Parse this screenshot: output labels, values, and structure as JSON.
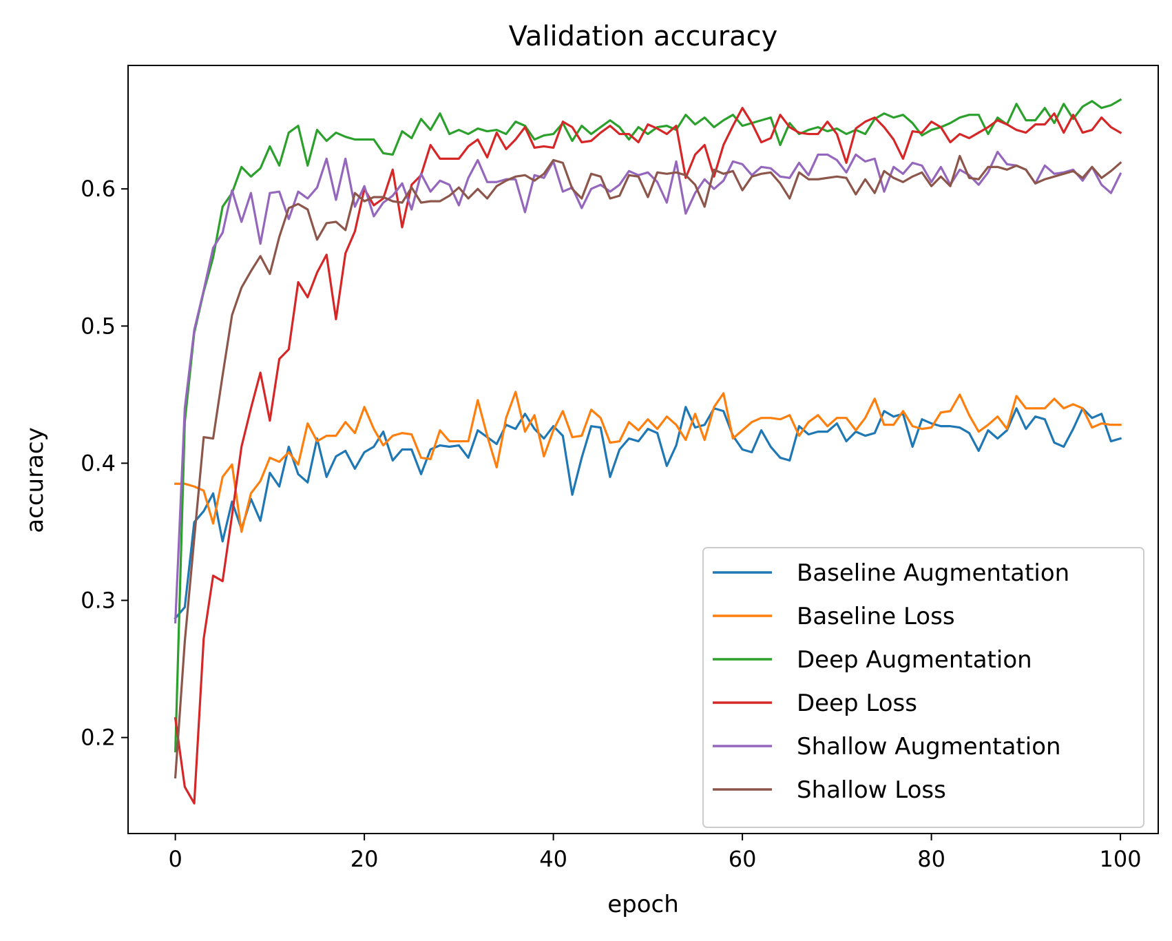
{
  "chart_data": {
    "type": "line",
    "title": "Validation accuracy",
    "xlabel": "epoch",
    "ylabel": "accuracy",
    "xlim": [
      -5,
      104
    ],
    "ylim": [
      0.13,
      0.69
    ],
    "xticks": [
      0,
      20,
      40,
      60,
      80,
      100
    ],
    "yticks": [
      0.2,
      0.3,
      0.4,
      0.5,
      0.6
    ],
    "xtick_labels": [
      "0",
      "20",
      "40",
      "60",
      "80",
      "100"
    ],
    "ytick_labels": [
      "0.2",
      "0.3",
      "0.4",
      "0.5",
      "0.6"
    ],
    "grid": false,
    "legend_position": "lower right",
    "series": [
      {
        "name": "Baseline Augmentation",
        "color": "#1f77b4",
        "values": [
          0.287,
          0.295,
          0.357,
          0.365,
          0.378,
          0.343,
          0.372,
          0.352,
          0.374,
          0.358,
          0.393,
          0.383,
          0.412,
          0.392,
          0.386,
          0.418,
          0.39,
          0.405,
          0.409,
          0.396,
          0.408,
          0.412,
          0.423,
          0.402,
          0.41,
          0.41,
          0.392,
          0.41,
          0.413,
          0.412,
          0.413,
          0.404,
          0.424,
          0.419,
          0.414,
          0.428,
          0.425,
          0.436,
          0.425,
          0.418,
          0.427,
          0.42,
          0.377,
          0.404,
          0.427,
          0.426,
          0.39,
          0.41,
          0.418,
          0.416,
          0.425,
          0.422,
          0.398,
          0.413,
          0.441,
          0.426,
          0.428,
          0.44,
          0.438,
          0.42,
          0.41,
          0.408,
          0.424,
          0.412,
          0.404,
          0.402,
          0.427,
          0.421,
          0.423,
          0.423,
          0.429,
          0.416,
          0.423,
          0.42,
          0.422,
          0.438,
          0.434,
          0.436,
          0.412,
          0.432,
          0.429,
          0.427,
          0.427,
          0.426,
          0.422,
          0.409,
          0.424,
          0.418,
          0.424,
          0.44,
          0.425,
          0.434,
          0.432,
          0.415,
          0.412,
          0.425,
          0.44,
          0.433,
          0.436,
          0.416,
          0.418
        ]
      },
      {
        "name": "Baseline Loss",
        "color": "#ff7f0e",
        "values": [
          0.385,
          0.385,
          0.383,
          0.38,
          0.356,
          0.39,
          0.399,
          0.35,
          0.378,
          0.387,
          0.404,
          0.401,
          0.408,
          0.399,
          0.429,
          0.416,
          0.42,
          0.42,
          0.43,
          0.422,
          0.441,
          0.425,
          0.413,
          0.42,
          0.422,
          0.421,
          0.404,
          0.403,
          0.424,
          0.416,
          0.416,
          0.416,
          0.446,
          0.42,
          0.397,
          0.433,
          0.452,
          0.423,
          0.435,
          0.405,
          0.424,
          0.438,
          0.419,
          0.42,
          0.439,
          0.433,
          0.415,
          0.416,
          0.43,
          0.424,
          0.432,
          0.425,
          0.434,
          0.428,
          0.417,
          0.436,
          0.417,
          0.441,
          0.451,
          0.418,
          0.424,
          0.43,
          0.433,
          0.433,
          0.432,
          0.435,
          0.42,
          0.43,
          0.435,
          0.427,
          0.433,
          0.433,
          0.424,
          0.433,
          0.447,
          0.428,
          0.428,
          0.438,
          0.427,
          0.425,
          0.426,
          0.437,
          0.438,
          0.45,
          0.435,
          0.423,
          0.428,
          0.434,
          0.425,
          0.449,
          0.44,
          0.44,
          0.44,
          0.447,
          0.44,
          0.443,
          0.44,
          0.426,
          0.429,
          0.428,
          0.428
        ]
      },
      {
        "name": "Deep Augmentation",
        "color": "#2ca02c",
        "values": [
          0.19,
          0.43,
          0.495,
          0.525,
          0.55,
          0.587,
          0.597,
          0.616,
          0.609,
          0.615,
          0.631,
          0.617,
          0.641,
          0.646,
          0.617,
          0.643,
          0.635,
          0.641,
          0.638,
          0.636,
          0.636,
          0.636,
          0.626,
          0.625,
          0.642,
          0.637,
          0.651,
          0.643,
          0.655,
          0.64,
          0.643,
          0.64,
          0.644,
          0.642,
          0.643,
          0.64,
          0.649,
          0.646,
          0.636,
          0.639,
          0.64,
          0.648,
          0.635,
          0.646,
          0.64,
          0.645,
          0.65,
          0.645,
          0.636,
          0.645,
          0.64,
          0.645,
          0.646,
          0.643,
          0.654,
          0.647,
          0.652,
          0.645,
          0.65,
          0.654,
          0.646,
          0.648,
          0.65,
          0.652,
          0.632,
          0.648,
          0.64,
          0.643,
          0.645,
          0.642,
          0.644,
          0.64,
          0.643,
          0.64,
          0.651,
          0.655,
          0.652,
          0.654,
          0.648,
          0.639,
          0.643,
          0.645,
          0.648,
          0.652,
          0.654,
          0.654,
          0.64,
          0.652,
          0.647,
          0.662,
          0.65,
          0.65,
          0.659,
          0.648,
          0.662,
          0.651,
          0.66,
          0.664,
          0.659,
          0.661,
          0.665
        ]
      },
      {
        "name": "Deep Loss",
        "color": "#d62728",
        "values": [
          0.214,
          0.164,
          0.152,
          0.272,
          0.318,
          0.314,
          0.362,
          0.412,
          0.44,
          0.466,
          0.431,
          0.476,
          0.483,
          0.532,
          0.521,
          0.539,
          0.552,
          0.505,
          0.553,
          0.569,
          0.6,
          0.588,
          0.593,
          0.614,
          0.572,
          0.603,
          0.61,
          0.632,
          0.622,
          0.622,
          0.622,
          0.631,
          0.636,
          0.623,
          0.641,
          0.629,
          0.636,
          0.645,
          0.63,
          0.631,
          0.63,
          0.649,
          0.645,
          0.634,
          0.635,
          0.641,
          0.646,
          0.64,
          0.64,
          0.634,
          0.647,
          0.644,
          0.64,
          0.646,
          0.608,
          0.625,
          0.632,
          0.609,
          0.632,
          0.646,
          0.659,
          0.648,
          0.634,
          0.637,
          0.654,
          0.645,
          0.641,
          0.64,
          0.64,
          0.649,
          0.64,
          0.619,
          0.644,
          0.649,
          0.652,
          0.645,
          0.636,
          0.622,
          0.642,
          0.641,
          0.649,
          0.645,
          0.634,
          0.64,
          0.637,
          0.641,
          0.645,
          0.65,
          0.647,
          0.643,
          0.641,
          0.647,
          0.647,
          0.655,
          0.641,
          0.654,
          0.641,
          0.643,
          0.652,
          0.645,
          0.641
        ]
      },
      {
        "name": "Shallow Augmentation",
        "color": "#9467bd",
        "values": [
          0.284,
          0.44,
          0.497,
          0.526,
          0.557,
          0.568,
          0.599,
          0.576,
          0.597,
          0.56,
          0.597,
          0.598,
          0.578,
          0.598,
          0.593,
          0.601,
          0.622,
          0.592,
          0.622,
          0.587,
          0.602,
          0.58,
          0.59,
          0.595,
          0.604,
          0.585,
          0.611,
          0.598,
          0.606,
          0.603,
          0.588,
          0.608,
          0.621,
          0.605,
          0.605,
          0.607,
          0.607,
          0.583,
          0.61,
          0.608,
          0.62,
          0.598,
          0.601,
          0.586,
          0.6,
          0.603,
          0.598,
          0.603,
          0.613,
          0.61,
          0.612,
          0.605,
          0.59,
          0.62,
          0.582,
          0.597,
          0.607,
          0.6,
          0.606,
          0.62,
          0.618,
          0.61,
          0.616,
          0.615,
          0.609,
          0.608,
          0.619,
          0.61,
          0.625,
          0.625,
          0.621,
          0.612,
          0.625,
          0.62,
          0.622,
          0.598,
          0.616,
          0.611,
          0.619,
          0.617,
          0.605,
          0.616,
          0.603,
          0.614,
          0.61,
          0.603,
          0.612,
          0.627,
          0.618,
          0.617,
          0.614,
          0.604,
          0.617,
          0.611,
          0.612,
          0.614,
          0.606,
          0.616,
          0.603,
          0.597,
          0.611
        ]
      },
      {
        "name": "Shallow Loss",
        "color": "#8c564b",
        "values": [
          0.171,
          0.27,
          0.345,
          0.419,
          0.418,
          0.464,
          0.508,
          0.528,
          0.54,
          0.551,
          0.538,
          0.565,
          0.586,
          0.589,
          0.585,
          0.563,
          0.575,
          0.576,
          0.57,
          0.597,
          0.591,
          0.594,
          0.594,
          0.591,
          0.59,
          0.601,
          0.59,
          0.591,
          0.591,
          0.595,
          0.601,
          0.593,
          0.6,
          0.593,
          0.602,
          0.606,
          0.609,
          0.61,
          0.606,
          0.611,
          0.621,
          0.619,
          0.6,
          0.593,
          0.611,
          0.609,
          0.593,
          0.595,
          0.61,
          0.609,
          0.594,
          0.612,
          0.611,
          0.612,
          0.61,
          0.603,
          0.587,
          0.614,
          0.611,
          0.613,
          0.599,
          0.609,
          0.611,
          0.612,
          0.604,
          0.593,
          0.612,
          0.607,
          0.607,
          0.608,
          0.609,
          0.608,
          0.596,
          0.607,
          0.597,
          0.613,
          0.608,
          0.605,
          0.609,
          0.612,
          0.602,
          0.609,
          0.602,
          0.624,
          0.608,
          0.607,
          0.616,
          0.616,
          0.614,
          0.617,
          0.614,
          0.604,
          0.607,
          0.609,
          0.611,
          0.613,
          0.608,
          0.616,
          0.608,
          0.613,
          0.619
        ]
      }
    ]
  }
}
